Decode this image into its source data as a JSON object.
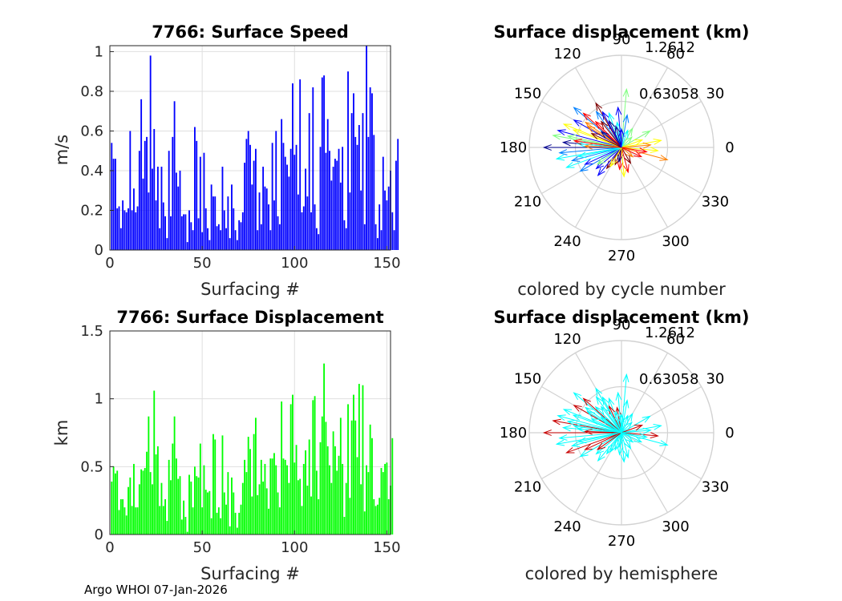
{
  "footer": "Argo WHOI 07-Jan-2026",
  "chart_data": [
    {
      "type": "bar",
      "title": "7766: Surface Speed",
      "xlabel": "Surfacing #",
      "ylabel": "m/s",
      "xlim": [
        0,
        152
      ],
      "ylim": [
        0,
        1.03
      ],
      "xticks": [
        "0",
        "50",
        "100",
        "150"
      ],
      "yticks": [
        "0",
        "0.2",
        "0.4",
        "0.6",
        "0.8",
        "1"
      ],
      "color": "#0000ff",
      "values": [
        0.54,
        0.46,
        0.46,
        0.21,
        0.22,
        0.11,
        0.25,
        0.2,
        0.19,
        0.21,
        0.6,
        0.2,
        0.31,
        0.19,
        0.22,
        0.5,
        0.76,
        0.36,
        0.55,
        0.57,
        0.29,
        0.98,
        0.41,
        0.61,
        0.25,
        0.42,
        0.11,
        0.42,
        0.24,
        0.17,
        0.06,
        0.5,
        0.17,
        0.57,
        0.75,
        0.39,
        0.32,
        0.4,
        0.17,
        0.18,
        0.18,
        0.04,
        0.2,
        0.14,
        0.1,
        0.62,
        0.55,
        0.16,
        0.47,
        0.09,
        0.49,
        0.21,
        0.11,
        0.05,
        0.33,
        0.27,
        0.27,
        0.12,
        0.13,
        0.1,
        0.42,
        0.2,
        0.11,
        0.27,
        0.06,
        0.33,
        0.21,
        0.1,
        0.05,
        0.15,
        0.14,
        0.19,
        0.44,
        0.56,
        0.6,
        0.53,
        0.33,
        0.45,
        0.51,
        0.1,
        0.29,
        0.13,
        0.42,
        0.32,
        0.31,
        0.23,
        0.1,
        0.54,
        0.25,
        0.6,
        0.17,
        0.13,
        0.66,
        0.54,
        0.47,
        0.43,
        0.37,
        0.51,
        0.84,
        0.48,
        0.53,
        0.28,
        0.86,
        0.19,
        0.22,
        0.41,
        0.27,
        0.69,
        0.19,
        0.82,
        0.23,
        0.11,
        0.08,
        0.52,
        0.87,
        0.88,
        0.49,
        0.66,
        0.5,
        0.35,
        0.42,
        0.46,
        0.45,
        0.51,
        0.34,
        0.52,
        0.15,
        0.11,
        0.9,
        0.29,
        0.69,
        0.79,
        0.57,
        0.53,
        0.63,
        0.3,
        0.69,
        0.13,
        1.03,
        0.57,
        0.82,
        0.79,
        0.58,
        0.13,
        0.06,
        0.23,
        0.1,
        0.47,
        0.3,
        0.25,
        0.32,
        0.4,
        0.19,
        0.1,
        0.45,
        0.56
      ]
    },
    {
      "type": "bar",
      "title": "7766: Surface Displacement",
      "xlabel": "Surfacing #",
      "ylabel": "km",
      "xlim": [
        0,
        152
      ],
      "ylim": [
        0,
        1.5
      ],
      "xticks": [
        "0",
        "50",
        "100",
        "150"
      ],
      "yticks": [
        "0",
        "0.5",
        "1",
        "1.5"
      ],
      "color": "#00ff00",
      "values": [
        0.39,
        0.5,
        0.45,
        0.47,
        0.18,
        0.26,
        0.26,
        0.2,
        0.14,
        0.35,
        0.42,
        0.21,
        0.52,
        0.2,
        0.2,
        0.37,
        0.48,
        0.47,
        0.49,
        0.61,
        0.87,
        0.46,
        0.37,
        1.06,
        0.59,
        0.65,
        0.21,
        0.38,
        0.21,
        0.26,
        0.1,
        0.55,
        0.4,
        0.67,
        0.87,
        0.56,
        0.41,
        0.43,
        0.11,
        0.25,
        0.13,
        0.02,
        0.44,
        0.39,
        0.2,
        0.5,
        0.43,
        0.42,
        0.67,
        0.2,
        0.51,
        0.33,
        0.31,
        0.32,
        0.12,
        0.74,
        0.7,
        0.16,
        0.2,
        0.12,
        0.73,
        0.31,
        0.22,
        0.46,
        0.06,
        0.42,
        0.31,
        0.16,
        0.05,
        0.16,
        0.22,
        0.38,
        0.55,
        0.46,
        0.72,
        0.63,
        0.28,
        0.74,
        0.86,
        0.29,
        0.37,
        0.55,
        0.39,
        0.52,
        0.34,
        0.19,
        0.56,
        0.56,
        0.6,
        0.51,
        0.31,
        0.2,
        0.98,
        0.56,
        0.55,
        0.51,
        0.38,
        0.96,
        1.03,
        0.53,
        0.66,
        0.4,
        0.41,
        0.21,
        0.52,
        0.62,
        0.36,
        0.7,
        0.28,
        0.99,
        1.02,
        0.47,
        0.26,
        0.68,
        0.87,
        1.26,
        0.83,
        0.65,
        0.51,
        0.38,
        0.76,
        0.65,
        0.47,
        0.58,
        0.86,
        0.52,
        0.13,
        0.38,
        0.96,
        0.27,
        0.84,
        1.03,
        0.84,
        0.57,
        1.11,
        0.37,
        1.1,
        0.17,
        0.51,
        0.46,
        0.81,
        0.71,
        0.26,
        0.21,
        0.22,
        0.27,
        0.49,
        0.46,
        0.52,
        0.53,
        0.26,
        0.36,
        0.71
      ]
    },
    {
      "type": "polar",
      "title": "Surface displacement (km)",
      "xlabel": "colored by cycle number",
      "rmax": 1.2612,
      "rings": [
        "0.63058",
        "1.2612"
      ],
      "angle_labels": [
        "0",
        "30",
        "60",
        "90",
        "120",
        "150",
        "180",
        "210",
        "240",
        "270",
        "300",
        "330"
      ],
      "colormap": [
        "#00008f",
        "#0000ff",
        "#0080ff",
        "#00ffff",
        "#80ff80",
        "#ffff00",
        "#ff8000",
        "#ff0000",
        "#800000"
      ],
      "vectors": [
        [
          180,
          1.06,
          0.05
        ],
        [
          175,
          0.8,
          0.1
        ],
        [
          165,
          0.9,
          0.15
        ],
        [
          150,
          0.75,
          0.2
        ],
        [
          140,
          0.85,
          0.25
        ],
        [
          125,
          0.6,
          0.3
        ],
        [
          110,
          0.5,
          0.35
        ],
        [
          100,
          0.35,
          0.4
        ],
        [
          85,
          0.8,
          0.45
        ],
        [
          60,
          0.3,
          0.5
        ],
        [
          30,
          0.45,
          0.55
        ],
        [
          10,
          0.55,
          0.6
        ],
        [
          -5,
          0.5,
          0.65
        ],
        [
          -15,
          0.65,
          0.7
        ],
        [
          -40,
          0.2,
          0.75
        ],
        [
          -75,
          0.35,
          0.8
        ],
        [
          -95,
          0.3,
          0.85
        ],
        [
          -110,
          0.25,
          0.9
        ],
        [
          -125,
          0.35,
          0.95
        ],
        [
          -140,
          0.45,
          0.12
        ],
        [
          -155,
          0.55,
          0.22
        ],
        [
          -165,
          0.7,
          0.32
        ],
        [
          -170,
          0.9,
          0.42
        ],
        [
          170,
          0.95,
          0.52
        ],
        [
          160,
          0.7,
          0.62
        ],
        [
          145,
          0.6,
          0.72
        ],
        [
          135,
          0.5,
          0.82
        ],
        [
          120,
          0.7,
          0.92
        ],
        [
          115,
          0.4,
          0.08
        ],
        [
          95,
          0.55,
          0.18
        ],
        [
          80,
          0.45,
          0.28
        ],
        [
          70,
          0.25,
          0.38
        ],
        [
          45,
          0.2,
          0.48
        ],
        [
          20,
          0.3,
          0.58
        ],
        [
          5,
          0.4,
          0.68
        ],
        [
          -10,
          0.35,
          0.78
        ],
        [
          -25,
          0.3,
          0.88
        ],
        [
          -60,
          0.25,
          0.98
        ],
        [
          -100,
          0.2,
          0.03
        ],
        [
          -130,
          0.5,
          0.14
        ],
        [
          -150,
          0.65,
          0.24
        ],
        [
          -160,
          0.8,
          0.34
        ],
        [
          175,
          0.6,
          0.44
        ],
        [
          168,
          0.75,
          0.54
        ],
        [
          158,
          0.85,
          0.64
        ],
        [
          148,
          0.55,
          0.74
        ],
        [
          138,
          0.7,
          0.84
        ],
        [
          128,
          0.45,
          0.94
        ],
        [
          105,
          0.3,
          0.06
        ],
        [
          90,
          0.25,
          0.16
        ],
        [
          -175,
          0.85,
          0.26
        ],
        [
          -168,
          0.6,
          0.36
        ],
        [
          -145,
          0.4,
          0.46
        ],
        [
          -120,
          0.3,
          0.56
        ],
        [
          -85,
          0.4,
          0.66
        ],
        [
          178,
          0.5,
          0.76
        ],
        [
          172,
          0.65,
          0.86
        ],
        [
          155,
          0.45,
          0.96
        ],
        [
          142,
          0.35,
          0.11
        ],
        [
          118,
          0.55,
          0.21
        ]
      ]
    },
    {
      "type": "polar",
      "title": "Surface displacement (km)",
      "xlabel": "colored by hemisphere",
      "rmax": 1.2612,
      "rings": [
        "0.63058",
        "1.2612"
      ],
      "angle_labels": [
        "0",
        "30",
        "60",
        "90",
        "120",
        "150",
        "180",
        "210",
        "240",
        "270",
        "300",
        "330"
      ],
      "colors": [
        "#00ffff",
        "#c80000"
      ],
      "vectors": [
        [
          180,
          1.06,
          1
        ],
        [
          175,
          0.8,
          0
        ],
        [
          165,
          0.9,
          0
        ],
        [
          150,
          0.75,
          1
        ],
        [
          140,
          0.85,
          0
        ],
        [
          125,
          0.6,
          0
        ],
        [
          110,
          0.5,
          0
        ],
        [
          100,
          0.35,
          1
        ],
        [
          85,
          0.8,
          0
        ],
        [
          60,
          0.3,
          0
        ],
        [
          30,
          0.45,
          0
        ],
        [
          10,
          0.55,
          0
        ],
        [
          -5,
          0.5,
          1
        ],
        [
          -15,
          0.65,
          0
        ],
        [
          -40,
          0.2,
          0
        ],
        [
          -75,
          0.35,
          0
        ],
        [
          -95,
          0.3,
          0
        ],
        [
          -110,
          0.25,
          0
        ],
        [
          -125,
          0.35,
          0
        ],
        [
          -140,
          0.45,
          0
        ],
        [
          -155,
          0.55,
          1
        ],
        [
          -165,
          0.7,
          0
        ],
        [
          -170,
          0.9,
          0
        ],
        [
          170,
          0.95,
          1
        ],
        [
          160,
          0.7,
          0
        ],
        [
          145,
          0.6,
          0
        ],
        [
          135,
          0.5,
          0
        ],
        [
          120,
          0.7,
          0
        ],
        [
          115,
          0.4,
          1
        ],
        [
          95,
          0.55,
          0
        ],
        [
          80,
          0.45,
          0
        ],
        [
          70,
          0.25,
          0
        ],
        [
          45,
          0.2,
          0
        ],
        [
          20,
          0.3,
          1
        ],
        [
          5,
          0.4,
          0
        ],
        [
          -10,
          0.35,
          0
        ],
        [
          -25,
          0.3,
          0
        ],
        [
          -60,
          0.25,
          0
        ],
        [
          -100,
          0.2,
          0
        ],
        [
          -130,
          0.5,
          0
        ],
        [
          -150,
          0.65,
          0
        ],
        [
          -160,
          0.8,
          1
        ],
        [
          175,
          0.6,
          0
        ],
        [
          168,
          0.75,
          0
        ],
        [
          158,
          0.85,
          0
        ],
        [
          148,
          0.55,
          0
        ],
        [
          138,
          0.7,
          1
        ],
        [
          128,
          0.45,
          0
        ],
        [
          105,
          0.3,
          0
        ],
        [
          90,
          0.25,
          0
        ],
        [
          -175,
          0.85,
          0
        ],
        [
          -168,
          0.6,
          0
        ],
        [
          -145,
          0.4,
          1
        ],
        [
          -120,
          0.3,
          0
        ],
        [
          -85,
          0.4,
          0
        ],
        [
          178,
          0.5,
          1
        ],
        [
          172,
          0.65,
          0
        ],
        [
          155,
          0.45,
          0
        ],
        [
          142,
          0.35,
          0
        ],
        [
          118,
          0.55,
          0
        ]
      ]
    }
  ]
}
